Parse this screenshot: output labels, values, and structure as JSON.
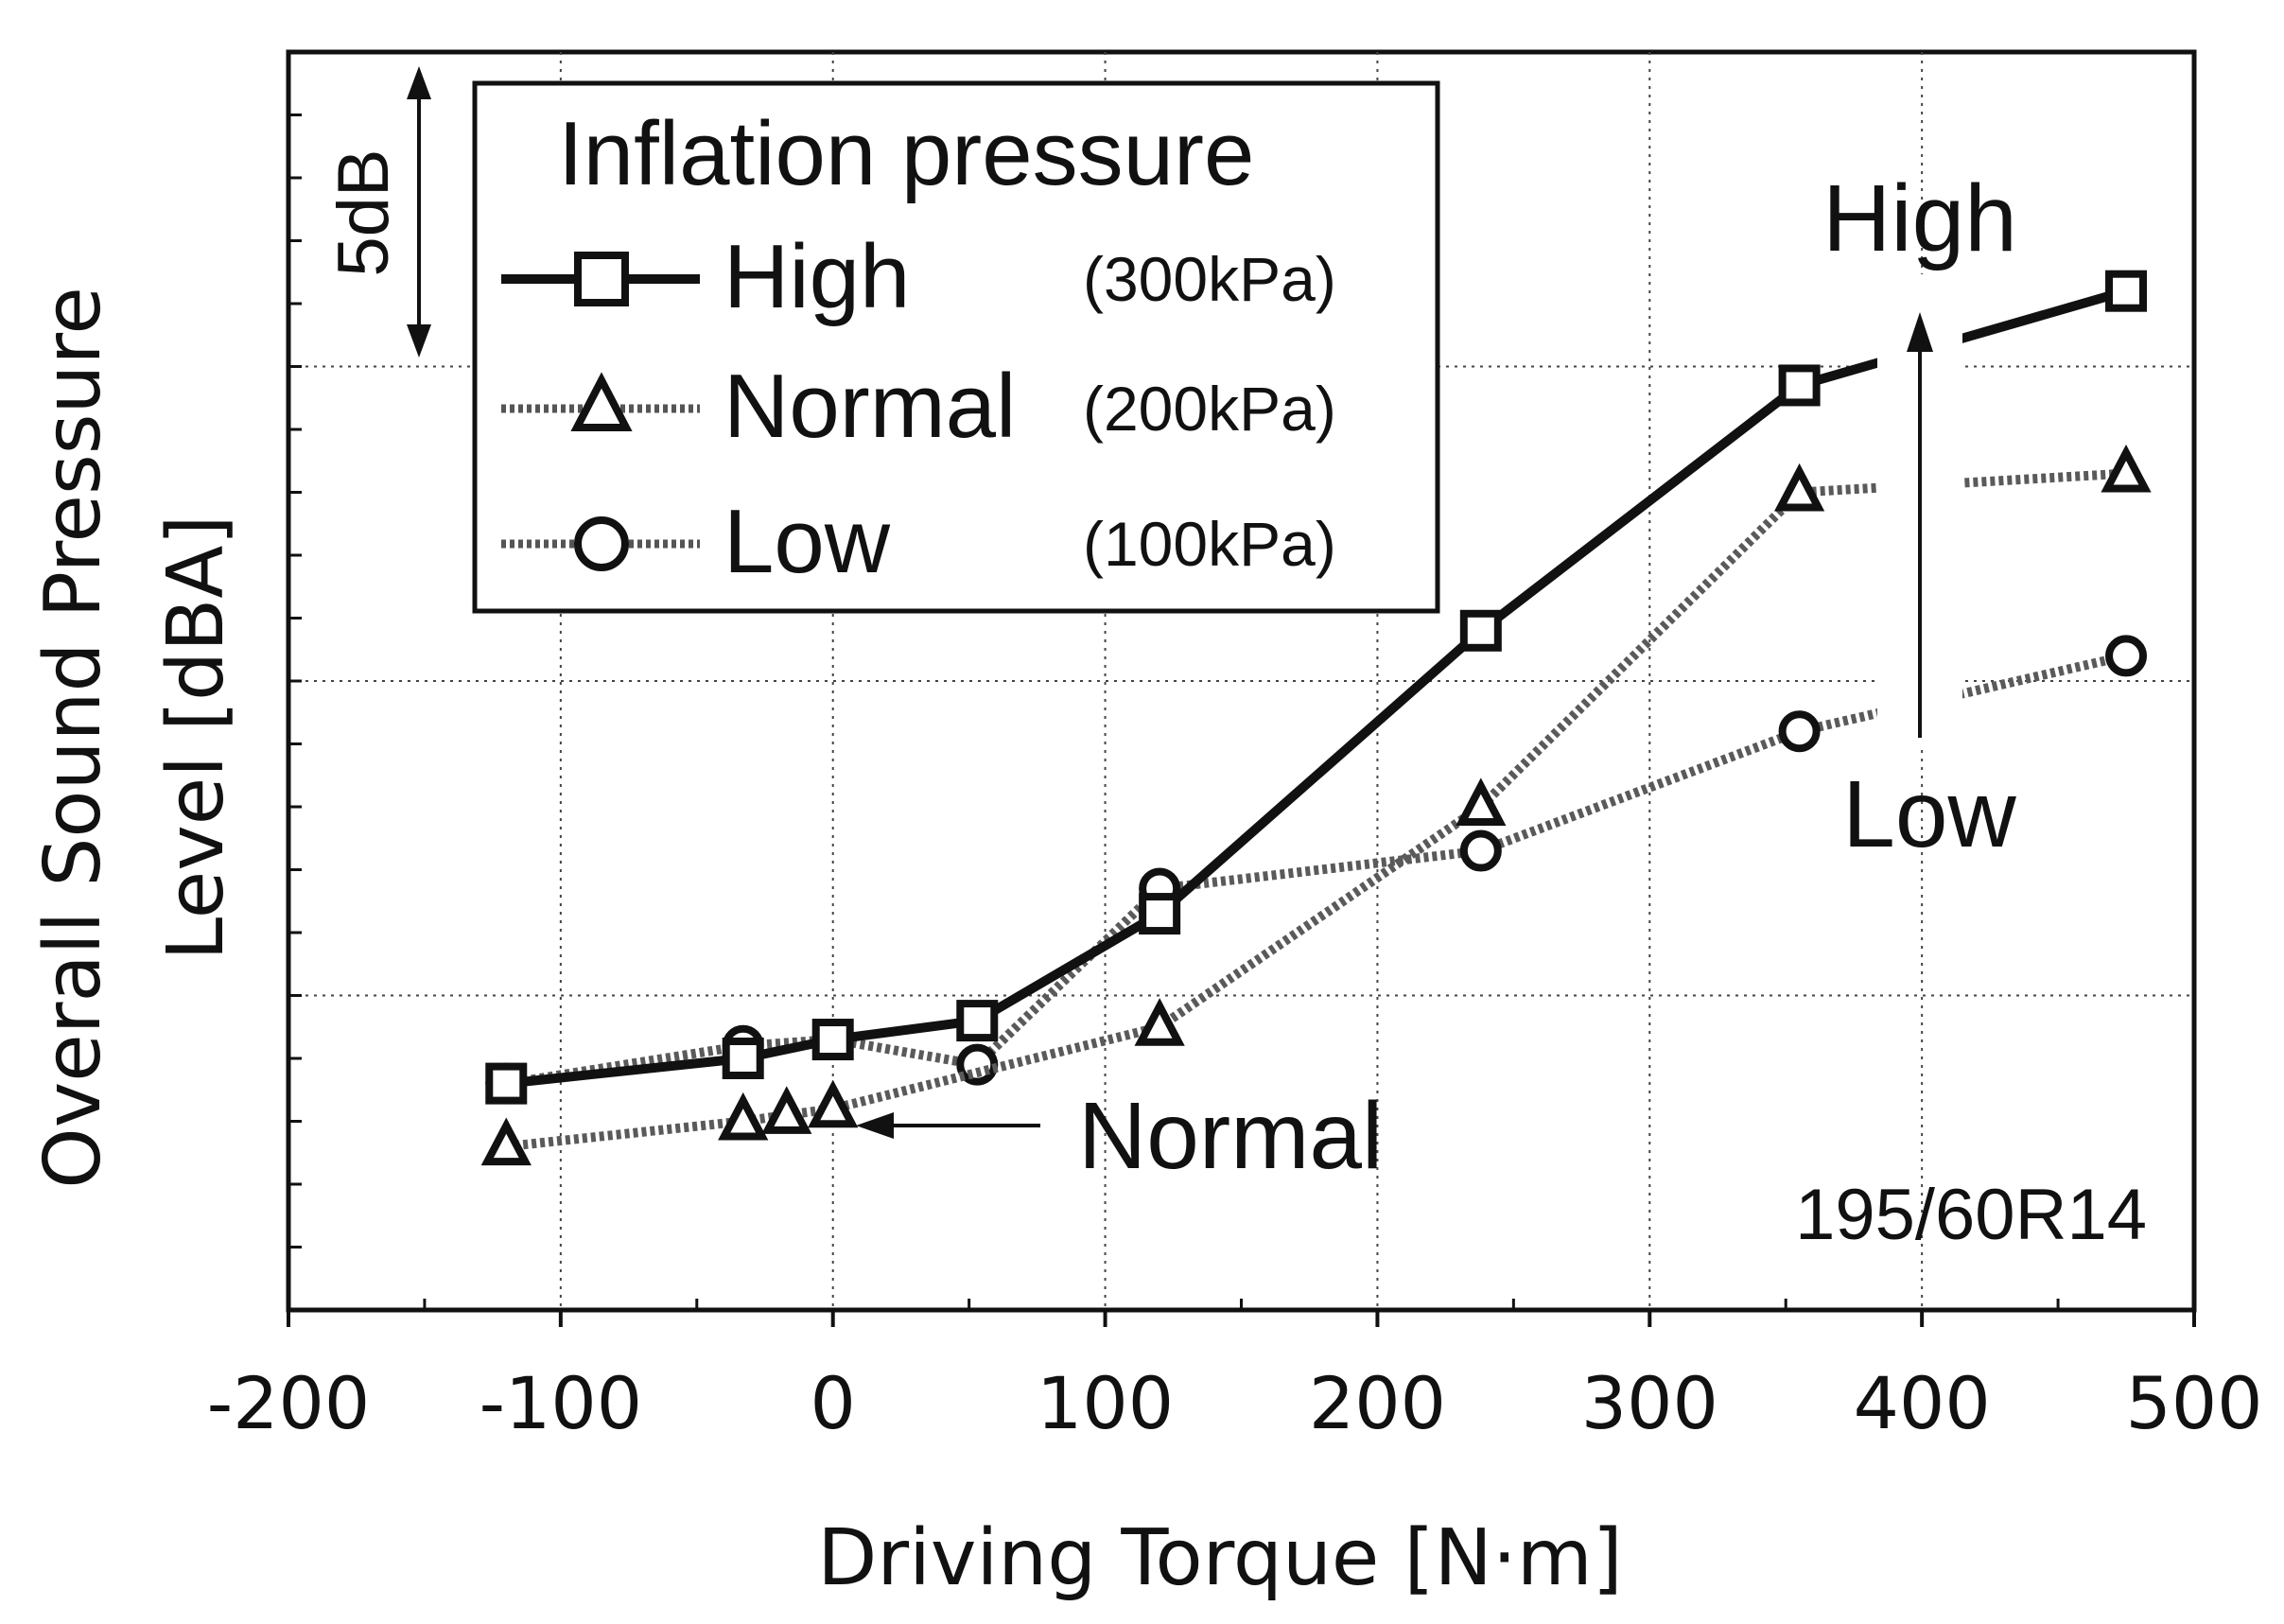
{
  "chart_data": {
    "type": "line",
    "title": "",
    "xlabel": "Driving Torque [N·m]",
    "ylabel_line1": "Overall Sound Pressure",
    "ylabel_line2": "Level [dBA]",
    "xlim": [
      -200,
      500
    ],
    "ylim": [
      0,
      20
    ],
    "x_ticks": [
      -200,
      -100,
      0,
      100,
      200,
      300,
      400,
      500
    ],
    "x_tick_labels": [
      "-200",
      "-100",
      "0",
      "100",
      "200",
      "300",
      "400",
      "500"
    ],
    "grid": true,
    "y_tick_labels_shown": false,
    "scale_bar_label": "5dB",
    "legend": {
      "title": "Inflation pressure",
      "placement": "top-left"
    },
    "series": [
      {
        "name": "High",
        "pressure": "(300kPa)",
        "marker": "square",
        "line_style": "solid",
        "x": [
          -120,
          -33,
          0,
          53,
          120,
          238,
          355,
          475
        ],
        "y": [
          3.6,
          4.0,
          4.3,
          4.6,
          6.3,
          10.8,
          14.7,
          16.2
        ]
      },
      {
        "name": "Normal",
        "pressure": "(200kPa)",
        "marker": "triangle",
        "line_style": "dotted",
        "x": [
          -120,
          -33,
          -17,
          0,
          120,
          238,
          355,
          475
        ],
        "y": [
          2.6,
          3.0,
          3.1,
          3.2,
          4.5,
          8.0,
          13.0,
          13.3
        ]
      },
      {
        "name": "Low",
        "pressure": "(100kPa)",
        "marker": "circle",
        "line_style": "dotted",
        "x": [
          -120,
          -33,
          0,
          53,
          120,
          238,
          355,
          475
        ],
        "y": [
          3.6,
          4.2,
          4.3,
          3.9,
          6.7,
          7.3,
          9.2,
          10.4
        ]
      }
    ],
    "annotations": {
      "normal_arrow_label": "Normal",
      "tire_size": "195/60R14",
      "arrow_top_label": "High",
      "arrow_bottom_label": "Low"
    }
  }
}
